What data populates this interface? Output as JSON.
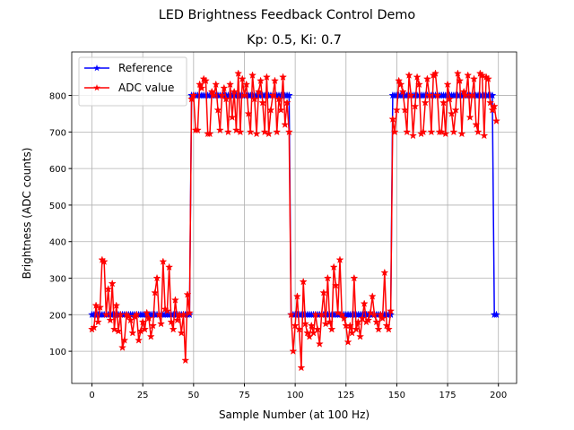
{
  "chart_data": {
    "type": "line",
    "suptitle": "LED Brightness Feedback Control Demo",
    "title": "Kp: 0.5, Ki: 0.7",
    "x_label": "Sample Number (at 100 Hz)",
    "y_label": "Brightness (ADC counts)",
    "x": [
      0,
      1,
      2,
      3,
      4,
      5,
      6,
      7,
      8,
      9,
      10,
      11,
      12,
      13,
      14,
      15,
      16,
      17,
      18,
      19,
      20,
      21,
      22,
      23,
      24,
      25,
      26,
      27,
      28,
      29,
      30,
      31,
      32,
      33,
      34,
      35,
      36,
      37,
      38,
      39,
      40,
      41,
      42,
      43,
      44,
      45,
      46,
      47,
      48,
      49,
      50,
      51,
      52,
      53,
      54,
      55,
      56,
      57,
      58,
      59,
      60,
      61,
      62,
      63,
      64,
      65,
      66,
      67,
      68,
      69,
      70,
      71,
      72,
      73,
      74,
      75,
      76,
      77,
      78,
      79,
      80,
      81,
      82,
      83,
      84,
      85,
      86,
      87,
      88,
      89,
      90,
      91,
      92,
      93,
      94,
      95,
      96,
      97,
      98,
      99,
      100,
      101,
      102,
      103,
      104,
      105,
      106,
      107,
      108,
      109,
      110,
      111,
      112,
      113,
      114,
      115,
      116,
      117,
      118,
      119,
      120,
      121,
      122,
      123,
      124,
      125,
      126,
      127,
      128,
      129,
      130,
      131,
      132,
      133,
      134,
      135,
      136,
      137,
      138,
      139,
      140,
      141,
      142,
      143,
      144,
      145,
      146,
      147,
      148,
      149,
      150,
      151,
      152,
      153,
      154,
      155,
      156,
      157,
      158,
      159,
      160,
      161,
      162,
      163,
      164,
      165,
      166,
      167,
      168,
      169,
      170,
      171,
      172,
      173,
      174,
      175,
      176,
      177,
      178,
      179,
      180,
      181,
      182,
      183,
      184,
      185,
      186,
      187,
      188,
      189,
      190,
      191,
      192,
      193,
      194,
      195,
      196,
      197,
      198,
      199
    ],
    "series": [
      {
        "name": "Reference",
        "color": "#0000ff",
        "values": [
          200,
          200,
          200,
          200,
          200,
          200,
          200,
          200,
          200,
          200,
          200,
          200,
          200,
          200,
          200,
          200,
          200,
          200,
          200,
          200,
          200,
          200,
          200,
          200,
          200,
          200,
          200,
          200,
          200,
          200,
          200,
          200,
          200,
          200,
          200,
          200,
          200,
          200,
          200,
          200,
          200,
          200,
          200,
          200,
          200,
          200,
          200,
          200,
          200,
          800,
          800,
          800,
          800,
          800,
          800,
          800,
          800,
          800,
          800,
          800,
          800,
          800,
          800,
          800,
          800,
          800,
          800,
          800,
          800,
          800,
          800,
          800,
          800,
          800,
          800,
          800,
          800,
          800,
          800,
          800,
          800,
          800,
          800,
          800,
          800,
          800,
          800,
          800,
          800,
          800,
          800,
          800,
          800,
          800,
          800,
          800,
          800,
          800,
          200,
          200,
          200,
          200,
          200,
          200,
          200,
          200,
          200,
          200,
          200,
          200,
          200,
          200,
          200,
          200,
          200,
          200,
          200,
          200,
          200,
          200,
          200,
          200,
          200,
          200,
          200,
          200,
          200,
          200,
          200,
          200,
          200,
          200,
          200,
          200,
          200,
          200,
          200,
          200,
          200,
          200,
          200,
          200,
          200,
          200,
          200,
          200,
          200,
          200,
          800,
          800,
          800,
          800,
          800,
          800,
          800,
          800,
          800,
          800,
          800,
          800,
          800,
          800,
          800,
          800,
          800,
          800,
          800,
          800,
          800,
          800,
          800,
          800,
          800,
          800,
          800,
          800,
          800,
          800,
          800,
          800,
          800,
          800,
          800,
          800,
          800,
          800,
          800,
          800,
          800,
          800,
          800,
          800,
          800,
          800,
          800,
          800,
          800,
          800,
          200,
          200
        ]
      },
      {
        "name": "ADC value",
        "color": "#ff0000",
        "values": [
          160,
          165,
          225,
          180,
          220,
          350,
          345,
          200,
          270,
          185,
          285,
          160,
          225,
          155,
          200,
          110,
          130,
          200,
          195,
          185,
          150,
          195,
          200,
          130,
          155,
          180,
          160,
          205,
          190,
          140,
          170,
          260,
          300,
          200,
          175,
          345,
          215,
          210,
          330,
          180,
          160,
          240,
          185,
          200,
          150,
          200,
          75,
          255,
          205,
          790,
          800,
          705,
          705,
          830,
          820,
          845,
          840,
          695,
          695,
          810,
          800,
          830,
          760,
          705,
          800,
          820,
          790,
          700,
          830,
          740,
          810,
          705,
          860,
          700,
          845,
          800,
          830,
          750,
          700,
          855,
          790,
          695,
          810,
          840,
          780,
          700,
          850,
          695,
          760,
          800,
          840,
          700,
          790,
          760,
          850,
          720,
          780,
          700,
          200,
          100,
          170,
          250,
          160,
          55,
          290,
          175,
          150,
          140,
          170,
          150,
          200,
          160,
          120,
          200,
          260,
          175,
          300,
          180,
          160,
          330,
          280,
          205,
          350,
          200,
          190,
          170,
          125,
          170,
          150,
          300,
          160,
          180,
          140,
          190,
          230,
          180,
          185,
          205,
          250,
          200,
          180,
          160,
          200,
          190,
          315,
          170,
          160,
          210,
          735,
          700,
          760,
          840,
          830,
          810,
          760,
          700,
          855,
          800,
          690,
          770,
          850,
          830,
          695,
          700,
          780,
          845,
          800,
          700,
          855,
          860,
          800,
          700,
          700,
          780,
          695,
          830,
          790,
          750,
          700,
          760,
          860,
          840,
          695,
          810,
          800,
          855,
          740,
          800,
          845,
          720,
          700,
          860,
          855,
          690,
          850,
          845,
          780,
          760,
          770,
          730
        ]
      }
    ],
    "xlim": [
      -9.95,
      208.95
    ],
    "ylim": [
      12,
      919
    ],
    "xticks": [
      0,
      25,
      50,
      75,
      100,
      125,
      150,
      175,
      200
    ],
    "yticks": [
      100,
      200,
      300,
      400,
      500,
      600,
      700,
      800
    ],
    "grid": true,
    "legend": "upper left"
  }
}
